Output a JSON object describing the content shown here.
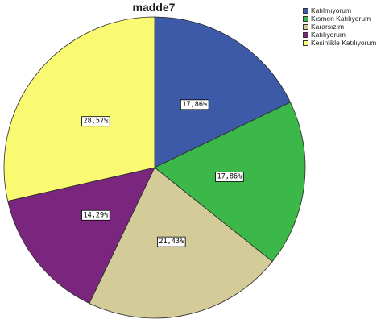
{
  "chart_data": {
    "type": "pie",
    "title": "madde7",
    "legend_position": "top-right",
    "start_angle_deg": 0,
    "direction": "clockwise",
    "slices": [
      {
        "label": "Katılmıyorum",
        "value": 17.86,
        "display": "17,86%",
        "color": "#3d5aa8"
      },
      {
        "label": "Kısmen Katılıyorum",
        "value": 17.86,
        "display": "17,86%",
        "color": "#3cb84a"
      },
      {
        "label": "Kararsızım",
        "value": 21.43,
        "display": "21,43%",
        "color": "#d3cc98"
      },
      {
        "label": "Katılıyorum",
        "value": 14.29,
        "display": "14,29%",
        "color": "#7b267e"
      },
      {
        "label": "Kesinlikle Katılıyorum",
        "value": 28.57,
        "display": "28,57%",
        "color": "#fafa72"
      }
    ]
  }
}
